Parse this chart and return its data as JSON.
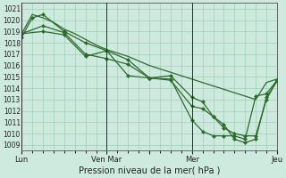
{
  "background_color": "#ceeade",
  "grid_color": "#9ecfb8",
  "line_color": "#2d6b2d",
  "marker_color": "#2d6b2d",
  "xlabel_text": "Pression niveau de la mer( hPa )",
  "ylim": [
    1008.5,
    1021.5
  ],
  "yticks": [
    1009,
    1010,
    1011,
    1012,
    1013,
    1014,
    1015,
    1016,
    1017,
    1018,
    1019,
    1020,
    1021
  ],
  "xlim": [
    0,
    288
  ],
  "vline_positions": [
    0,
    96,
    192,
    288
  ],
  "xtick_positions": [
    0,
    96,
    144,
    192,
    288
  ],
  "xtick_labels": [
    "Lun",
    "Ven Mar",
    "",
    "Mer",
    "Jeu"
  ],
  "series": [
    {
      "x": [
        0,
        12,
        24,
        36,
        48,
        60,
        72,
        84,
        96,
        108,
        120,
        132,
        144,
        156,
        168,
        180,
        192,
        204,
        216,
        228,
        240,
        252,
        264,
        276,
        288
      ],
      "y": [
        1018.8,
        1020.5,
        1020.2,
        1019.8,
        1019.2,
        1018.8,
        1018.3,
        1017.8,
        1017.4,
        1017.1,
        1016.8,
        1016.4,
        1016.0,
        1015.7,
        1015.4,
        1015.1,
        1014.8,
        1014.5,
        1014.2,
        1013.9,
        1013.6,
        1013.3,
        1013.0,
        1014.5,
        1014.8
      ],
      "marker": false,
      "lw": 0.9
    },
    {
      "x": [
        0,
        12,
        24,
        48,
        72,
        96,
        120,
        144,
        168,
        192,
        204,
        216,
        228,
        240,
        252,
        264,
        276,
        288
      ],
      "y": [
        1018.5,
        1020.2,
        1020.5,
        1019.0,
        1018.0,
        1017.3,
        1016.5,
        1014.9,
        1014.8,
        1011.2,
        1010.2,
        1009.8,
        1009.8,
        1009.8,
        1009.5,
        1013.3,
        1013.5,
        1014.7
      ],
      "marker": true,
      "lw": 0.9
    },
    {
      "x": [
        0,
        24,
        48,
        72,
        96,
        120,
        144,
        168,
        192,
        204,
        216,
        228,
        240,
        252,
        264,
        276,
        288
      ],
      "y": [
        1018.8,
        1019.5,
        1018.9,
        1017.0,
        1016.6,
        1016.1,
        1014.9,
        1014.7,
        1012.4,
        1012.2,
        1011.5,
        1010.8,
        1009.5,
        1009.2,
        1009.5,
        1013.2,
        1014.6
      ],
      "marker": true,
      "lw": 0.9
    },
    {
      "x": [
        0,
        24,
        48,
        72,
        96,
        120,
        144,
        168,
        192,
        204,
        216,
        228,
        240,
        252,
        264,
        276,
        288
      ],
      "y": [
        1018.8,
        1019.0,
        1018.7,
        1016.8,
        1017.3,
        1015.1,
        1014.9,
        1015.1,
        1013.2,
        1012.8,
        1011.5,
        1010.5,
        1010.0,
        1009.8,
        1009.8,
        1013.0,
        1014.7
      ],
      "marker": true,
      "lw": 0.9
    }
  ]
}
